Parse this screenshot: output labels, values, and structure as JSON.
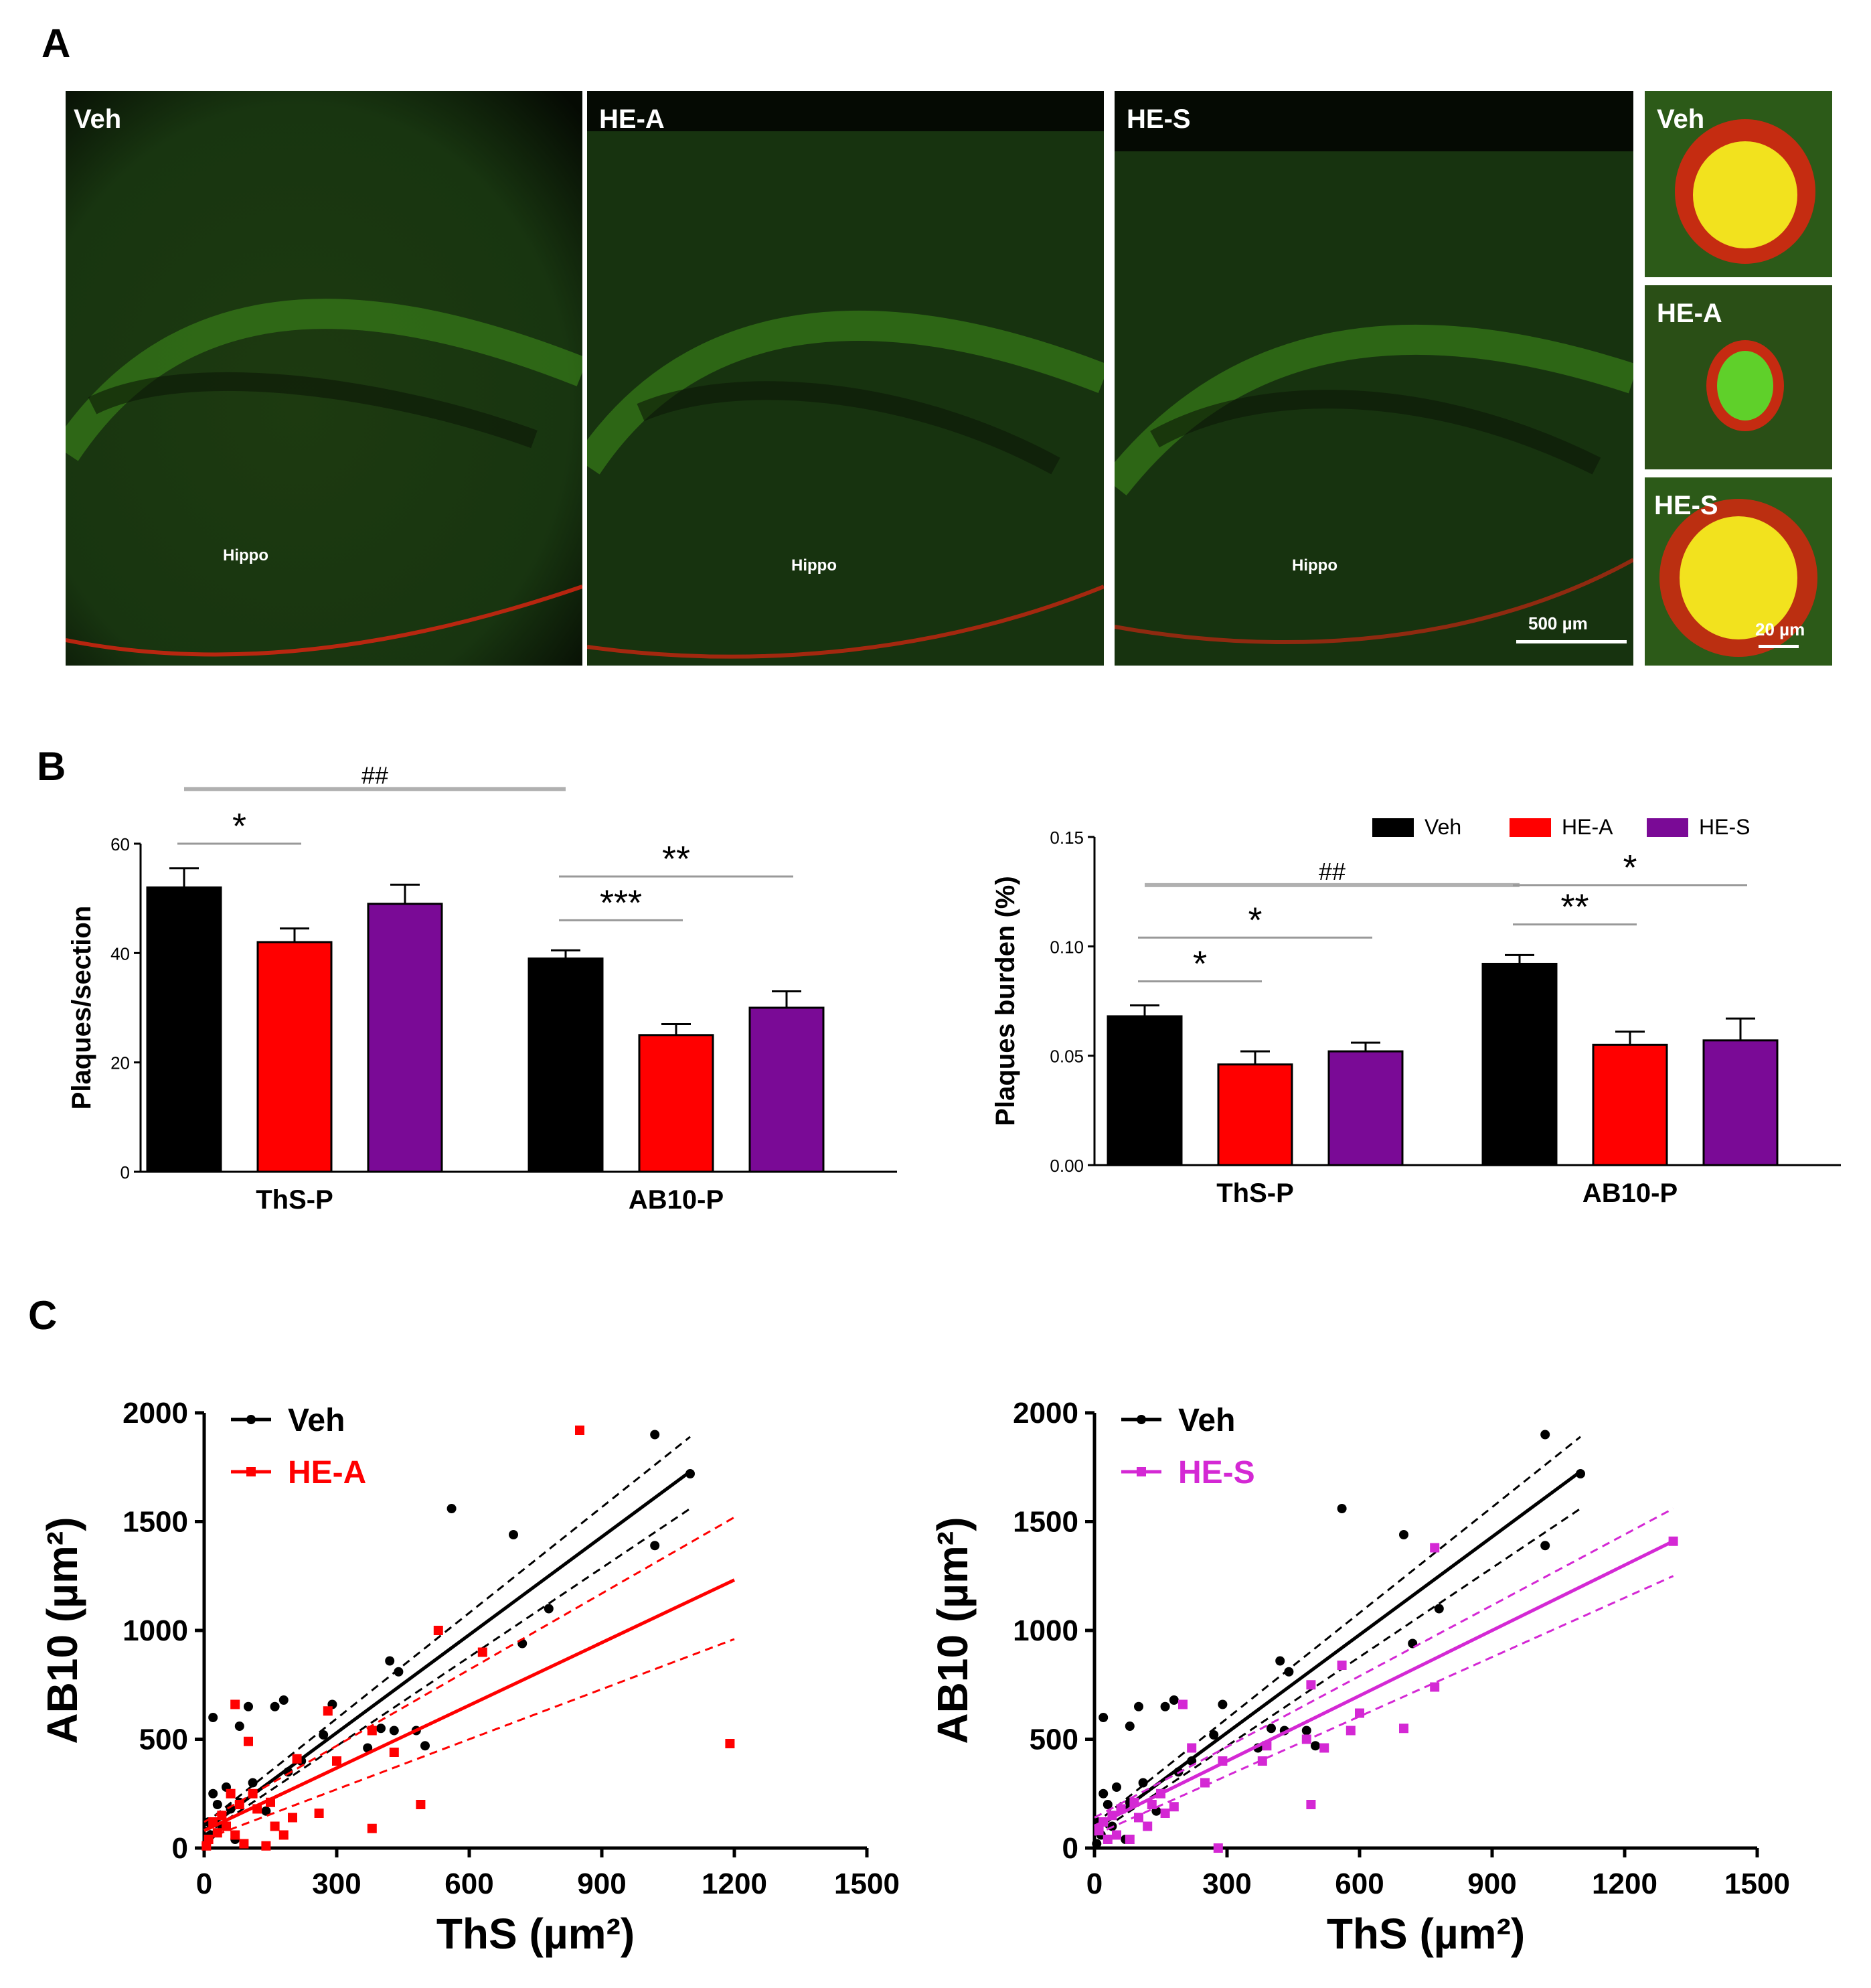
{
  "panels": {
    "a": "A",
    "b": "B",
    "c": "C"
  },
  "micrographs": {
    "large": [
      {
        "label": "Veh",
        "region": "Hippo"
      },
      {
        "label": "HE-A",
        "region": "Hippo"
      },
      {
        "label": "HE-S",
        "region": "Hippo",
        "scale": "500 µm"
      }
    ],
    "insets": [
      {
        "label": "Veh"
      },
      {
        "label": "HE-A"
      },
      {
        "label": "HE-S",
        "scale": "20 µm"
      }
    ],
    "colors": {
      "background": "#0c1a08",
      "green": "#3f8f1c",
      "red": "#e02410",
      "plaque": "#f2e21e"
    }
  },
  "legend_b": [
    "Veh",
    "HE-A",
    "HE-S"
  ],
  "legend_c_left": [
    "Veh",
    "HE-A"
  ],
  "legend_c_right": [
    "Veh",
    "HE-S"
  ],
  "chart_data": [
    {
      "type": "bar",
      "title": "",
      "ylabel": "Plaques/section",
      "xlabel": "",
      "ylim": [
        0,
        60
      ],
      "yticks": [
        "0",
        "20",
        "40",
        "60"
      ],
      "categories": [
        "ThS-P",
        "AB10-P"
      ],
      "series": [
        {
          "name": "Veh",
          "color": "#000000",
          "values": [
            52,
            39
          ],
          "sem": [
            3.5,
            1.5
          ]
        },
        {
          "name": "HE-A",
          "color": "#ff0000",
          "values": [
            42,
            25
          ],
          "sem": [
            2.5,
            2
          ]
        },
        {
          "name": "HE-S",
          "color": "#7a0a96",
          "values": [
            49,
            30
          ],
          "sem": [
            3.5,
            3
          ]
        }
      ],
      "annotations": [
        {
          "text": "*",
          "group": 0,
          "from": 0,
          "to": 1,
          "level": 60
        },
        {
          "text": "##",
          "group": -1,
          "from": 0,
          "to": 0,
          "level": 70
        },
        {
          "text": "***",
          "group": 1,
          "from": 0,
          "to": 1,
          "level": 46
        },
        {
          "text": "**",
          "group": 1,
          "from": 0,
          "to": 2,
          "level": 54
        }
      ]
    },
    {
      "type": "bar",
      "title": "",
      "ylabel": "Plaques burden (%)",
      "xlabel": "",
      "ylim": [
        0,
        0.15
      ],
      "yticks": [
        "0.00",
        "0.05",
        "0.10",
        "0.15"
      ],
      "categories": [
        "ThS-P",
        "AB10-P"
      ],
      "series": [
        {
          "name": "Veh",
          "color": "#000000",
          "values": [
            0.068,
            0.092
          ],
          "sem": [
            0.005,
            0.004
          ]
        },
        {
          "name": "HE-A",
          "color": "#ff0000",
          "values": [
            0.046,
            0.055
          ],
          "sem": [
            0.006,
            0.006
          ]
        },
        {
          "name": "HE-S",
          "color": "#7a0a96",
          "values": [
            0.052,
            0.057
          ],
          "sem": [
            0.004,
            0.01
          ]
        }
      ],
      "legend": "top-right",
      "annotations": [
        {
          "text": "*",
          "group": 0,
          "from": 0,
          "to": 1,
          "level": 0.084
        },
        {
          "text": "*",
          "group": 0,
          "from": 0,
          "to": 2,
          "level": 0.104
        },
        {
          "text": "##",
          "group": -1,
          "from": 0,
          "to": 0,
          "level": 0.128
        },
        {
          "text": "**",
          "group": 1,
          "from": 0,
          "to": 1,
          "level": 0.11
        },
        {
          "text": "*",
          "group": 1,
          "from": 0,
          "to": 2,
          "level": 0.128
        }
      ]
    },
    {
      "type": "scatter",
      "title": "",
      "xlabel": "ThS (µm²)",
      "ylabel": "AB10 (µm²)",
      "xlim": [
        0,
        1500
      ],
      "ylim": [
        0,
        2000
      ],
      "xticks": [
        "0",
        "300",
        "600",
        "900",
        "1200",
        "1500"
      ],
      "yticks": [
        "0",
        "500",
        "1000",
        "1500",
        "2000"
      ],
      "series": [
        {
          "name": "Veh",
          "color": "#000000",
          "marker": "circle",
          "fit": {
            "slope": 1.5,
            "intercept": 80,
            "x_end": 1100,
            "ci_low": [
              60,
              1560
            ],
            "ci_high": [
              110,
              1890
            ]
          },
          "points": [
            [
              1020,
              1900
            ],
            [
              560,
              1560
            ],
            [
              1100,
              1720
            ],
            [
              700,
              1440
            ],
            [
              1020,
              1390
            ],
            [
              780,
              1100
            ],
            [
              720,
              940
            ],
            [
              420,
              860
            ],
            [
              440,
              810
            ],
            [
              180,
              680
            ],
            [
              160,
              650
            ],
            [
              290,
              660
            ],
            [
              100,
              650
            ],
            [
              20,
              600
            ],
            [
              80,
              560
            ],
            [
              400,
              550
            ],
            [
              480,
              540
            ],
            [
              430,
              540
            ],
            [
              270,
              520
            ],
            [
              370,
              460
            ],
            [
              220,
              400
            ],
            [
              500,
              470
            ],
            [
              190,
              350
            ],
            [
              110,
              300
            ],
            [
              50,
              280
            ],
            [
              20,
              250
            ],
            [
              80,
              210
            ],
            [
              30,
              200
            ],
            [
              60,
              180
            ],
            [
              140,
              170
            ],
            [
              10,
              120
            ],
            [
              40,
              100
            ],
            [
              15,
              60
            ],
            [
              70,
              40
            ],
            [
              5,
              20
            ]
          ]
        },
        {
          "name": "HE-A",
          "color": "#ff0000",
          "marker": "square",
          "fit": {
            "slope": 0.96,
            "intercept": 80,
            "x_end": 1200,
            "ci_low": [
              40,
              960
            ],
            "ci_high": [
              120,
              1520
            ]
          },
          "points": [
            [
              850,
              1920
            ],
            [
              530,
              1000
            ],
            [
              630,
              900
            ],
            [
              1190,
              480
            ],
            [
              70,
              660
            ],
            [
              280,
              630
            ],
            [
              100,
              490
            ],
            [
              380,
              540
            ],
            [
              210,
              410
            ],
            [
              430,
              440
            ],
            [
              300,
              400
            ],
            [
              490,
              200
            ],
            [
              380,
              90
            ],
            [
              260,
              160
            ],
            [
              200,
              140
            ],
            [
              150,
              210
            ],
            [
              110,
              250
            ],
            [
              60,
              250
            ],
            [
              80,
              200
            ],
            [
              120,
              180
            ],
            [
              40,
              150
            ],
            [
              20,
              120
            ],
            [
              50,
              100
            ],
            [
              70,
              60
            ],
            [
              10,
              40
            ],
            [
              90,
              20
            ],
            [
              30,
              70
            ],
            [
              160,
              100
            ],
            [
              180,
              60
            ],
            [
              140,
              10
            ],
            [
              5,
              10
            ]
          ]
        }
      ]
    },
    {
      "type": "scatter",
      "title": "",
      "xlabel": "ThS (µm²)",
      "ylabel": "AB10 (µm²)",
      "xlim": [
        0,
        1500
      ],
      "ylim": [
        0,
        2000
      ],
      "xticks": [
        "0",
        "300",
        "600",
        "900",
        "1200",
        "1500"
      ],
      "yticks": [
        "0",
        "500",
        "1000",
        "1500",
        "2000"
      ],
      "series": [
        {
          "name": "Veh",
          "color": "#000000",
          "marker": "circle",
          "fit": {
            "slope": 1.5,
            "intercept": 80,
            "x_end": 1100,
            "ci_low": [
              60,
              1560
            ],
            "ci_high": [
              110,
              1890
            ]
          },
          "points": [
            [
              1020,
              1900
            ],
            [
              560,
              1560
            ],
            [
              1100,
              1720
            ],
            [
              700,
              1440
            ],
            [
              1020,
              1390
            ],
            [
              780,
              1100
            ],
            [
              720,
              940
            ],
            [
              420,
              860
            ],
            [
              440,
              810
            ],
            [
              180,
              680
            ],
            [
              160,
              650
            ],
            [
              290,
              660
            ],
            [
              100,
              650
            ],
            [
              20,
              600
            ],
            [
              80,
              560
            ],
            [
              400,
              550
            ],
            [
              480,
              540
            ],
            [
              430,
              540
            ],
            [
              270,
              520
            ],
            [
              370,
              460
            ],
            [
              220,
              400
            ],
            [
              500,
              470
            ],
            [
              190,
              350
            ],
            [
              110,
              300
            ],
            [
              50,
              280
            ],
            [
              20,
              250
            ],
            [
              80,
              210
            ],
            [
              30,
              200
            ],
            [
              60,
              180
            ],
            [
              140,
              170
            ],
            [
              10,
              120
            ],
            [
              40,
              100
            ],
            [
              15,
              60
            ],
            [
              70,
              40
            ],
            [
              5,
              20
            ]
          ]
        },
        {
          "name": "HE-S",
          "color": "#d428d4",
          "marker": "square",
          "fit": {
            "slope": 1.0,
            "intercept": 100,
            "x_end": 1310,
            "ci_low": [
              60,
              1250
            ],
            "ci_high": [
              140,
              1560
            ]
          },
          "points": [
            [
              1310,
              1410
            ],
            [
              770,
              1380
            ],
            [
              560,
              840
            ],
            [
              770,
              740
            ],
            [
              490,
              750
            ],
            [
              700,
              550
            ],
            [
              580,
              540
            ],
            [
              520,
              460
            ],
            [
              480,
              500
            ],
            [
              390,
              470
            ],
            [
              380,
              400
            ],
            [
              220,
              460
            ],
            [
              200,
              660
            ],
            [
              290,
              400
            ],
            [
              250,
              300
            ],
            [
              150,
              250
            ],
            [
              130,
              200
            ],
            [
              90,
              210
            ],
            [
              60,
              180
            ],
            [
              40,
              150
            ],
            [
              20,
              120
            ],
            [
              10,
              80
            ],
            [
              50,
              60
            ],
            [
              80,
              40
            ],
            [
              120,
              100
            ],
            [
              160,
              160
            ],
            [
              180,
              190
            ],
            [
              100,
              140
            ],
            [
              30,
              40
            ],
            [
              280,
              0
            ],
            [
              490,
              200
            ],
            [
              600,
              620
            ]
          ]
        }
      ]
    }
  ]
}
